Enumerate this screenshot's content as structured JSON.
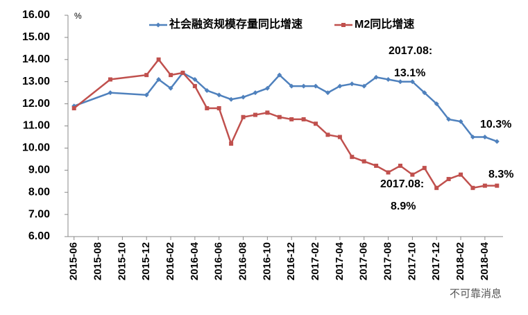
{
  "chart_data": {
    "type": "line",
    "y_unit": "%",
    "x": [
      "2015-06",
      "2015-09",
      "2015-12",
      "2016-01",
      "2016-02",
      "2016-03",
      "2016-04",
      "2016-05",
      "2016-06",
      "2016-07",
      "2016-08",
      "2016-09",
      "2016-10",
      "2016-11",
      "2016-12",
      "2017-01",
      "2017-02",
      "2017-03",
      "2017-04",
      "2017-05",
      "2017-06",
      "2017-07",
      "2017-08",
      "2017-09",
      "2017-10",
      "2017-11",
      "2017-12",
      "2018-01",
      "2018-02",
      "2018-03",
      "2018-04",
      "2018-05"
    ],
    "xlim": [
      "2015-06",
      "2018-05"
    ],
    "xticks": [
      "2015-06",
      "2015-08",
      "2015-10",
      "2015-12",
      "2016-02",
      "2016-04",
      "2016-06",
      "2016-08",
      "2016-10",
      "2016-12",
      "2017-02",
      "2017-04",
      "2017-06",
      "2017-08",
      "2017-10",
      "2017-12",
      "2018-02",
      "2018-04"
    ],
    "ylim": [
      6,
      16
    ],
    "yticks": [
      {
        "value": 6,
        "label": "6.00"
      },
      {
        "value": 7,
        "label": "7.00"
      },
      {
        "value": 8,
        "label": "8.00"
      },
      {
        "value": 9,
        "label": "9.00"
      },
      {
        "value": 10,
        "label": "10.00"
      },
      {
        "value": 11,
        "label": "11.00"
      },
      {
        "value": 12,
        "label": "12.00"
      },
      {
        "value": 13,
        "label": "13.00"
      },
      {
        "value": 14,
        "label": "14.00"
      },
      {
        "value": 15,
        "label": "15.00"
      },
      {
        "value": 16,
        "label": "16.00"
      }
    ],
    "series": [
      {
        "name": "社会融资规模存量同比增速",
        "color": "#4f81bd",
        "marker": "diamond",
        "values": [
          11.9,
          12.5,
          12.4,
          13.1,
          12.7,
          13.4,
          13.1,
          12.6,
          12.4,
          12.2,
          12.3,
          12.5,
          12.7,
          13.3,
          12.8,
          12.8,
          12.8,
          12.5,
          12.8,
          12.9,
          12.8,
          13.2,
          13.1,
          13.0,
          13.0,
          12.5,
          12.0,
          11.3,
          11.2,
          10.5,
          10.5,
          10.3
        ]
      },
      {
        "name": "M2同比增速",
        "color": "#c0504d",
        "marker": "square",
        "values": [
          11.8,
          13.1,
          13.3,
          14.0,
          13.3,
          13.4,
          12.8,
          11.8,
          11.8,
          10.2,
          11.4,
          11.5,
          11.6,
          11.4,
          11.3,
          11.3,
          11.1,
          10.6,
          10.5,
          9.6,
          9.4,
          9.2,
          8.9,
          9.2,
          8.8,
          9.1,
          8.2,
          8.6,
          8.8,
          8.2,
          8.3,
          8.3
        ]
      }
    ],
    "annotations": [
      "2017.08:",
      "13.1%",
      "10.3%",
      "2017.08:",
      "8.9%",
      "8.3%"
    ],
    "watermark": "不可靠消息"
  }
}
